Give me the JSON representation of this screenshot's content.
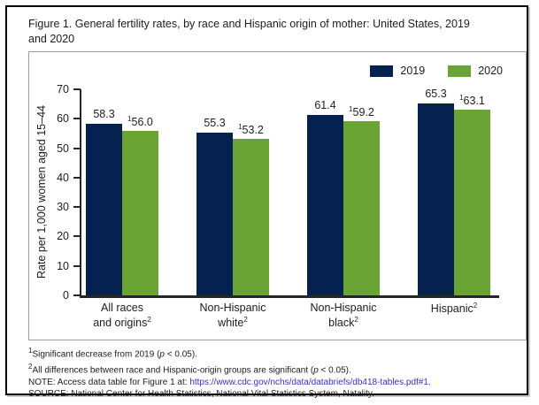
{
  "title": "Figure 1. General fertility rates, by race and Hispanic origin of mother: United States, 2019 and 2020",
  "chart_data": {
    "type": "bar",
    "title": "General fertility rates, by race and Hispanic origin of mother: United States, 2019 and 2020",
    "categories": [
      "All races and origins",
      "Non-Hispanic white",
      "Non-Hispanic black",
      "Hispanic"
    ],
    "categories_display": [
      {
        "lines": [
          "All races",
          "and origins"
        ],
        "sup": "2"
      },
      {
        "lines": [
          "Non-Hispanic",
          "white"
        ],
        "sup": "2"
      },
      {
        "lines": [
          "Non-Hispanic",
          "black"
        ],
        "sup": "2"
      },
      {
        "lines": [
          "Hispanic"
        ],
        "sup": "2"
      }
    ],
    "series": [
      {
        "name": "2019",
        "color": "#052150",
        "values": [
          58.3,
          55.3,
          61.4,
          65.3
        ],
        "labels": [
          "58.3",
          "55.3",
          "61.4",
          "65.3"
        ],
        "label_sup": ""
      },
      {
        "name": "2020",
        "color": "#69A434",
        "values": [
          56.0,
          53.2,
          59.2,
          63.1
        ],
        "labels": [
          "56.0",
          "53.2",
          "59.2",
          "63.1"
        ],
        "label_sup": "1"
      }
    ],
    "xlabel": "",
    "ylabel": "Rate per 1,000 women aged 15–44",
    "ylim": [
      0,
      70
    ],
    "yticks": [
      0,
      10,
      20,
      30,
      40,
      50,
      60,
      70
    ],
    "grid": false,
    "legend_position": "top-right"
  },
  "footnotes": [
    {
      "name": "footnote-1",
      "segments": [
        {
          "t": "1",
          "s": "sup"
        },
        {
          "t": "Significant decrease from 2019 ("
        },
        {
          "t": "p",
          "s": "i"
        },
        {
          "t": " < 0.05)."
        }
      ]
    },
    {
      "name": "footnote-2",
      "segments": [
        {
          "t": "2",
          "s": "sup"
        },
        {
          "t": "All differences between race and Hispanic-origin groups are significant ("
        },
        {
          "t": "p",
          "s": "i"
        },
        {
          "t": " < 0.05)."
        }
      ]
    },
    {
      "name": "note-line",
      "segments": [
        {
          "t": "NOTE: Access data table for Figure 1 at: "
        },
        {
          "t": "https://www.cdc.gov/nchs/data/databriefs/db418-tables.pdf#1",
          "s": "link"
        },
        {
          "t": "."
        }
      ]
    },
    {
      "name": "source-line",
      "segments": [
        {
          "t": "SOURCE: National Center for Health Statistics, National Vital Statistics System, Natality."
        }
      ]
    }
  ],
  "colors": {
    "bar_2019": "#052150",
    "bar_2020": "#69A434",
    "axis": "#262626",
    "link": "#3333cc",
    "panel_border": "#9e9e9e"
  }
}
